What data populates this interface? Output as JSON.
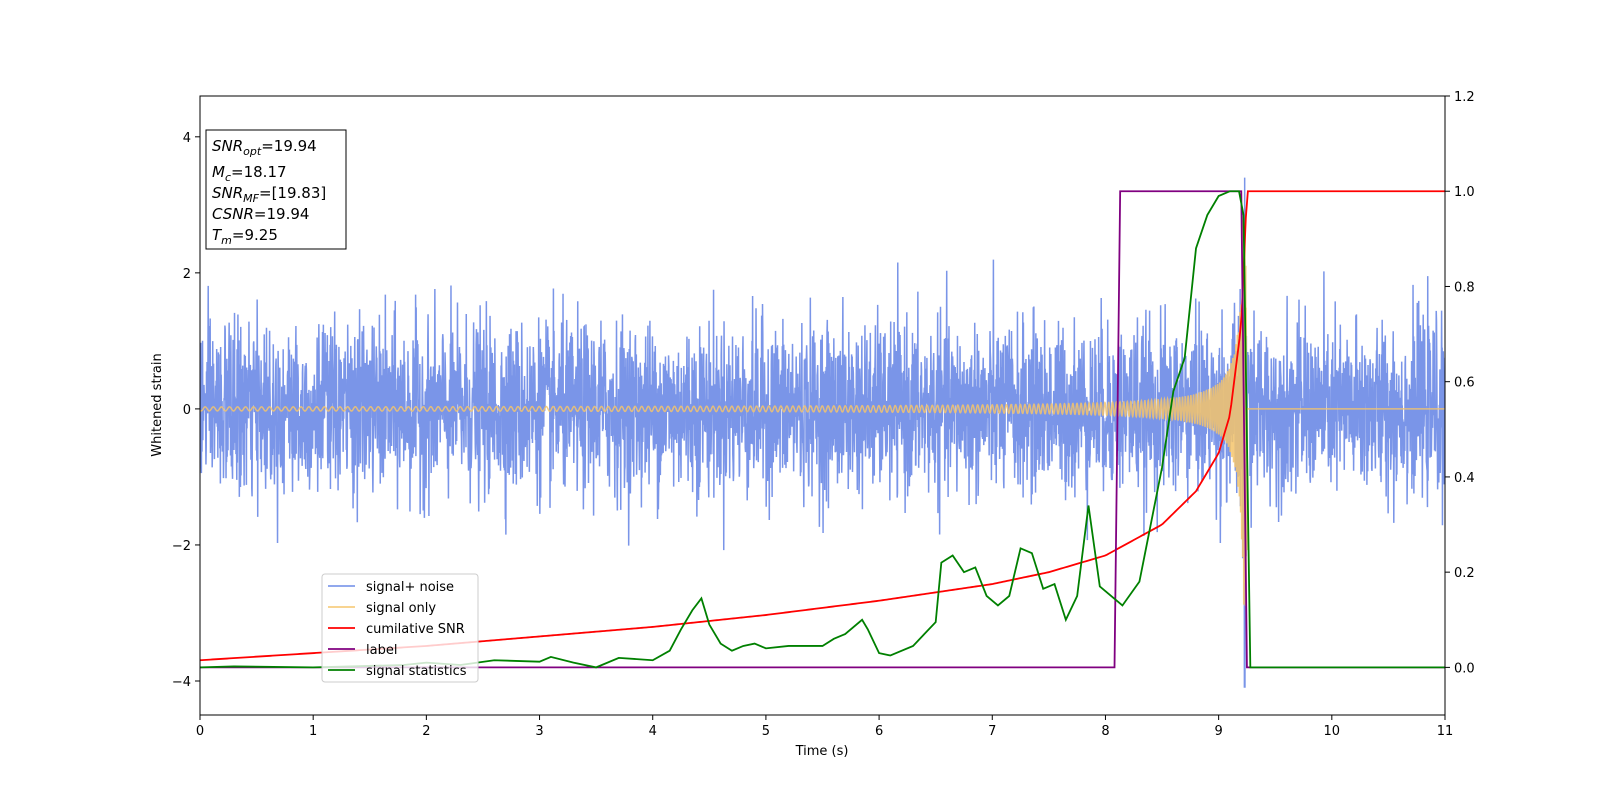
{
  "chart_data": {
    "type": "line",
    "xlabel": "Time (s)",
    "ylabel": "Whitened strain",
    "xlim": [
      0,
      11
    ],
    "ylim_left": [
      -4.5,
      4.6
    ],
    "ylim_right": [
      -0.1,
      1.2
    ],
    "x_ticks": [
      0,
      1,
      2,
      3,
      4,
      5,
      6,
      7,
      8,
      9,
      10,
      11
    ],
    "y_ticks_left": [
      -4,
      -2,
      0,
      2,
      4
    ],
    "y_ticks_right": [
      0.0,
      0.2,
      0.4,
      0.6,
      0.8,
      1.0,
      1.2
    ],
    "grid": false,
    "legend_position": "lower-left",
    "series": [
      {
        "name": "signal+ noise",
        "axis": "left",
        "color": "#6b8ae6",
        "description_values": "noisy strain, amplitude roughly within [-3, 3.4] across 0–11 s, sharp spike near 9.2 s",
        "typical_std": 0.9,
        "peak_high": 3.4,
        "peak_low": -4.1,
        "peak_time": 9.23
      },
      {
        "name": "signal only",
        "axis": "left",
        "color": "#f5c46b",
        "chirp_merger_time": 9.25,
        "amplitude_at_start": 0.03,
        "amplitude_at_merger": 2.9
      },
      {
        "name": "cumilative SNR",
        "axis": "right",
        "color": "#ff0000",
        "points": [
          [
            0,
            0.015
          ],
          [
            1,
            0.03
          ],
          [
            2,
            0.045
          ],
          [
            3,
            0.065
          ],
          [
            4,
            0.085
          ],
          [
            5,
            0.11
          ],
          [
            6,
            0.14
          ],
          [
            7,
            0.175
          ],
          [
            7.5,
            0.2
          ],
          [
            8,
            0.235
          ],
          [
            8.5,
            0.3
          ],
          [
            8.8,
            0.37
          ],
          [
            9.0,
            0.45
          ],
          [
            9.1,
            0.53
          ],
          [
            9.2,
            0.72
          ],
          [
            9.25,
            1.0
          ],
          [
            11,
            1.0
          ]
        ]
      },
      {
        "name": "label",
        "axis": "right",
        "color": "#800080",
        "points": [
          [
            0,
            0.0
          ],
          [
            8.08,
            0.0
          ],
          [
            8.13,
            1.0
          ],
          [
            9.2,
            1.0
          ],
          [
            9.25,
            0.0
          ],
          [
            11,
            0.0
          ]
        ]
      },
      {
        "name": "signal statistics",
        "axis": "right",
        "color": "#008000",
        "points": [
          [
            0,
            0.0
          ],
          [
            0.3,
            0.002
          ],
          [
            1,
            0.0
          ],
          [
            1.8,
            0.005
          ],
          [
            2.0,
            0.01
          ],
          [
            2.3,
            0.005
          ],
          [
            2.6,
            0.015
          ],
          [
            3.0,
            0.012
          ],
          [
            3.1,
            0.022
          ],
          [
            3.3,
            0.01
          ],
          [
            3.5,
            0.0
          ],
          [
            3.7,
            0.02
          ],
          [
            4.0,
            0.015
          ],
          [
            4.15,
            0.035
          ],
          [
            4.25,
            0.08
          ],
          [
            4.35,
            0.12
          ],
          [
            4.43,
            0.145
          ],
          [
            4.5,
            0.09
          ],
          [
            4.6,
            0.05
          ],
          [
            4.7,
            0.035
          ],
          [
            4.8,
            0.045
          ],
          [
            4.9,
            0.05
          ],
          [
            5.0,
            0.04
          ],
          [
            5.2,
            0.045
          ],
          [
            5.5,
            0.045
          ],
          [
            5.6,
            0.06
          ],
          [
            5.7,
            0.07
          ],
          [
            5.85,
            0.1
          ],
          [
            5.9,
            0.08
          ],
          [
            6.0,
            0.03
          ],
          [
            6.1,
            0.025
          ],
          [
            6.3,
            0.045
          ],
          [
            6.4,
            0.07
          ],
          [
            6.5,
            0.095
          ],
          [
            6.55,
            0.22
          ],
          [
            6.65,
            0.235
          ],
          [
            6.75,
            0.2
          ],
          [
            6.85,
            0.21
          ],
          [
            6.95,
            0.15
          ],
          [
            7.05,
            0.13
          ],
          [
            7.15,
            0.15
          ],
          [
            7.25,
            0.25
          ],
          [
            7.35,
            0.24
          ],
          [
            7.45,
            0.165
          ],
          [
            7.55,
            0.175
          ],
          [
            7.65,
            0.1
          ],
          [
            7.75,
            0.15
          ],
          [
            7.85,
            0.34
          ],
          [
            7.95,
            0.17
          ],
          [
            8.05,
            0.15
          ],
          [
            8.15,
            0.13
          ],
          [
            8.3,
            0.18
          ],
          [
            8.4,
            0.3
          ],
          [
            8.5,
            0.42
          ],
          [
            8.6,
            0.58
          ],
          [
            8.7,
            0.65
          ],
          [
            8.8,
            0.88
          ],
          [
            8.9,
            0.95
          ],
          [
            9.0,
            0.99
          ],
          [
            9.1,
            1.0
          ],
          [
            9.18,
            1.0
          ],
          [
            9.22,
            0.95
          ],
          [
            9.28,
            0.0
          ],
          [
            11,
            0.0
          ]
        ]
      }
    ],
    "info_box": {
      "lines": [
        {
          "label": "SNR",
          "sub": "opt",
          "value": "=19.94"
        },
        {
          "label": "M",
          "sub": "c",
          "value": "=18.17"
        },
        {
          "label": "SNR",
          "sub": "MF",
          "value": "=[19.83]"
        },
        {
          "label": "CSNR",
          "sub": "",
          "value": "=19.94"
        },
        {
          "label": "T",
          "sub": "m",
          "value": "=9.25"
        }
      ]
    }
  }
}
